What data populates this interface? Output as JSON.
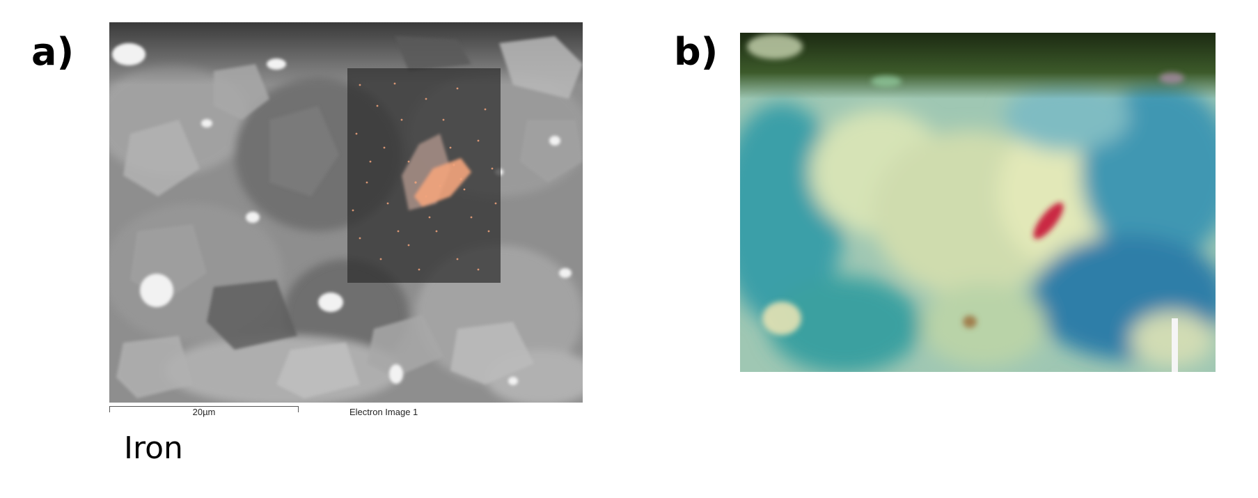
{
  "panels": {
    "a": {
      "label": "a)",
      "scale_bar": "20µm",
      "image_caption": "Electron Image 1",
      "element_label": "Iron",
      "overlay_color": "#f2a47c",
      "image": "sem-backscatter-micrograph"
    },
    "b": {
      "label": "b)",
      "particle_color": "#c8203c",
      "image": "optical-cross-section-micrograph"
    }
  }
}
